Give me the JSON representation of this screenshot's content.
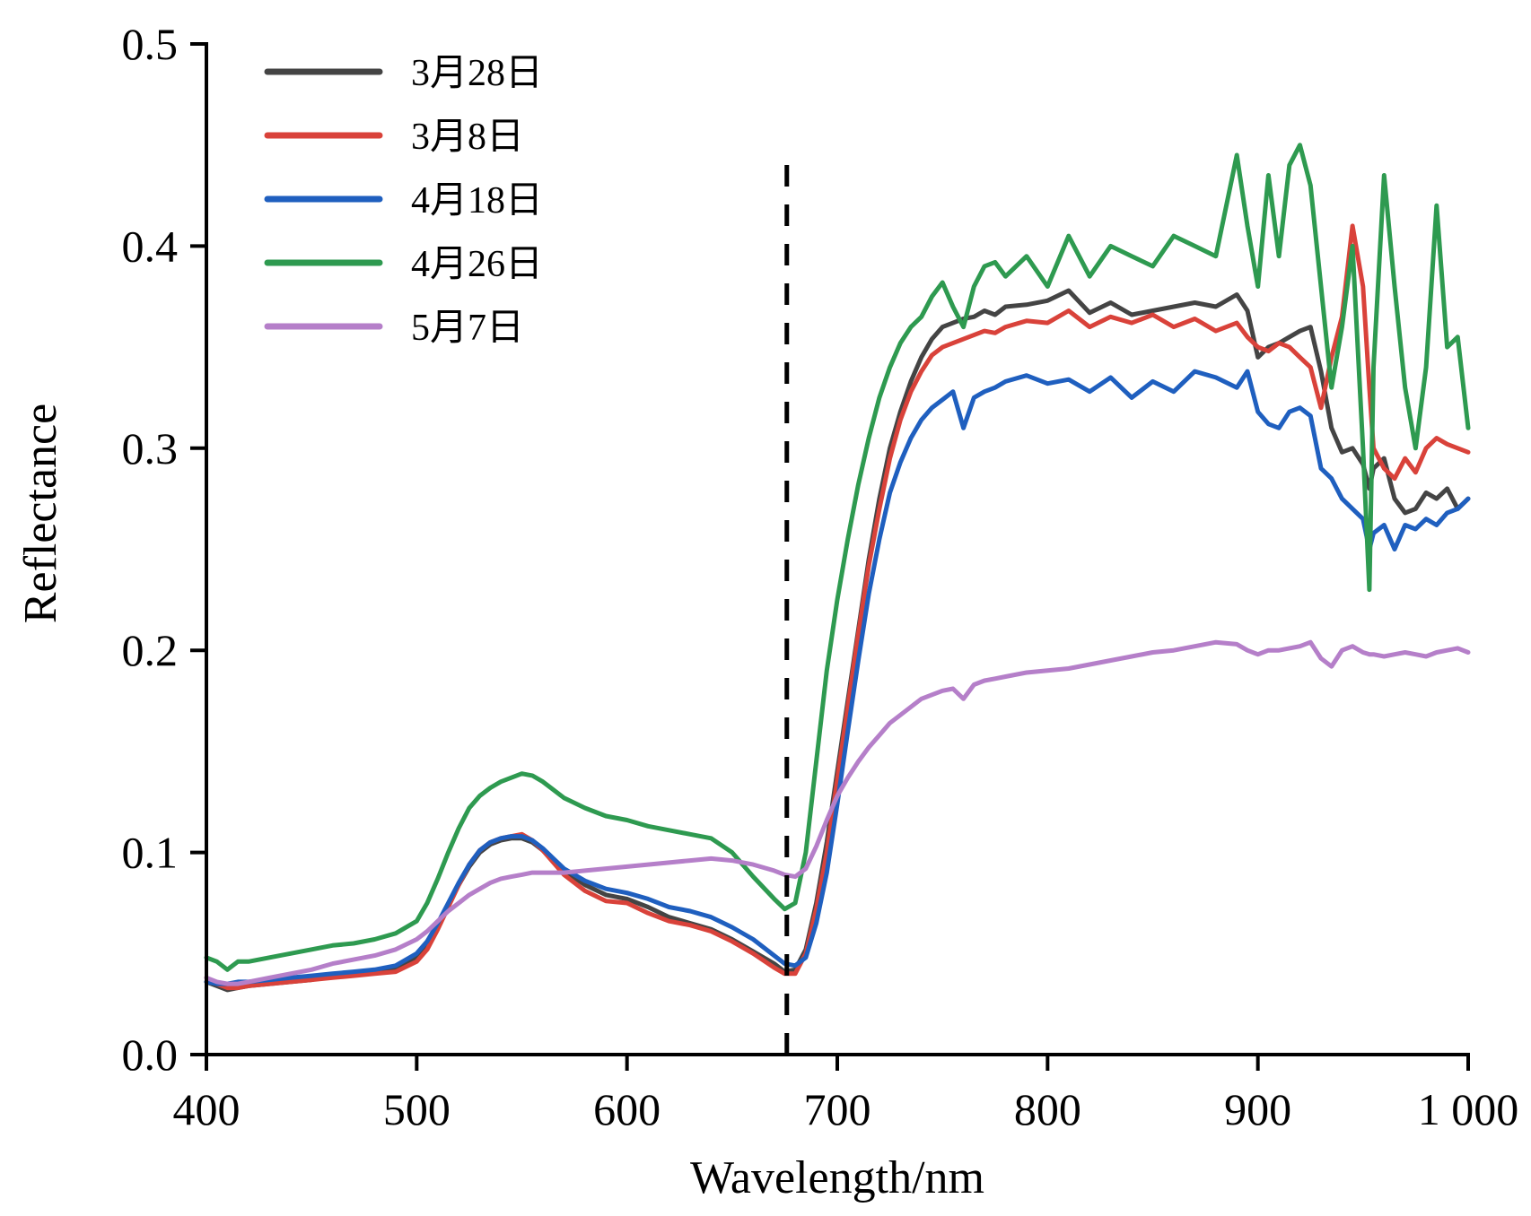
{
  "chart_data": {
    "type": "line",
    "title": "",
    "xlabel": "Wavelength/nm",
    "ylabel": "Reflectance",
    "xlim": [
      400,
      1000
    ],
    "ylim": [
      0.0,
      0.5
    ],
    "xticks": [
      400,
      500,
      600,
      700,
      800,
      900,
      1000
    ],
    "xtick_labels": [
      "400",
      "500",
      "600",
      "700",
      "800",
      "900",
      "1 000"
    ],
    "yticks": [
      0.0,
      0.1,
      0.2,
      0.3,
      0.4,
      0.5
    ],
    "ytick_labels": [
      "0.0",
      "0.1",
      "0.2",
      "0.3",
      "0.4",
      "0.5"
    ],
    "grid": false,
    "legend_position": "top-left",
    "reference_line": {
      "x": 676,
      "style": "dashed",
      "color": "#000000"
    },
    "x": [
      400,
      405,
      410,
      415,
      420,
      430,
      440,
      450,
      460,
      470,
      480,
      490,
      500,
      505,
      510,
      515,
      520,
      525,
      530,
      535,
      540,
      545,
      550,
      555,
      560,
      565,
      570,
      580,
      590,
      600,
      610,
      620,
      630,
      640,
      650,
      660,
      670,
      675,
      680,
      685,
      690,
      695,
      700,
      705,
      710,
      715,
      720,
      725,
      730,
      735,
      740,
      745,
      750,
      755,
      760,
      765,
      770,
      775,
      780,
      790,
      800,
      810,
      820,
      830,
      840,
      850,
      860,
      870,
      880,
      890,
      895,
      900,
      905,
      910,
      915,
      920,
      925,
      930,
      935,
      940,
      945,
      950,
      953,
      955,
      960,
      965,
      970,
      975,
      980,
      985,
      990,
      995,
      1000
    ],
    "series": [
      {
        "name": "3月28日",
        "color": "#444444",
        "values": [
          0.036,
          0.034,
          0.032,
          0.033,
          0.034,
          0.035,
          0.036,
          0.037,
          0.039,
          0.04,
          0.041,
          0.042,
          0.048,
          0.055,
          0.064,
          0.074,
          0.084,
          0.093,
          0.1,
          0.104,
          0.106,
          0.107,
          0.107,
          0.105,
          0.101,
          0.096,
          0.091,
          0.084,
          0.079,
          0.077,
          0.073,
          0.068,
          0.065,
          0.062,
          0.057,
          0.051,
          0.045,
          0.041,
          0.042,
          0.052,
          0.075,
          0.105,
          0.14,
          0.175,
          0.21,
          0.245,
          0.275,
          0.3,
          0.318,
          0.333,
          0.345,
          0.354,
          0.36,
          0.362,
          0.364,
          0.365,
          0.368,
          0.366,
          0.37,
          0.371,
          0.373,
          0.378,
          0.367,
          0.372,
          0.366,
          0.368,
          0.37,
          0.372,
          0.37,
          0.376,
          0.368,
          0.345,
          0.35,
          0.352,
          0.355,
          0.358,
          0.36,
          0.338,
          0.31,
          0.298,
          0.3,
          0.292,
          0.28,
          0.29,
          0.295,
          0.275,
          0.268,
          0.27,
          0.278,
          0.275,
          0.28,
          0.27,
          0.275
        ]
      },
      {
        "name": "3月8日",
        "color": "#d9423a",
        "values": [
          0.038,
          0.035,
          0.033,
          0.033,
          0.034,
          0.035,
          0.036,
          0.037,
          0.038,
          0.039,
          0.04,
          0.041,
          0.046,
          0.052,
          0.062,
          0.073,
          0.084,
          0.094,
          0.101,
          0.105,
          0.107,
          0.108,
          0.109,
          0.106,
          0.101,
          0.095,
          0.089,
          0.081,
          0.076,
          0.075,
          0.07,
          0.066,
          0.064,
          0.061,
          0.056,
          0.05,
          0.043,
          0.04,
          0.04,
          0.05,
          0.072,
          0.1,
          0.136,
          0.172,
          0.208,
          0.242,
          0.27,
          0.295,
          0.314,
          0.328,
          0.338,
          0.346,
          0.35,
          0.352,
          0.354,
          0.356,
          0.358,
          0.357,
          0.36,
          0.363,
          0.362,
          0.368,
          0.36,
          0.365,
          0.362,
          0.366,
          0.36,
          0.364,
          0.358,
          0.362,
          0.355,
          0.35,
          0.348,
          0.352,
          0.35,
          0.345,
          0.34,
          0.32,
          0.345,
          0.365,
          0.41,
          0.38,
          0.33,
          0.3,
          0.29,
          0.285,
          0.295,
          0.288,
          0.3,
          0.305,
          0.302,
          0.3,
          0.298
        ]
      },
      {
        "name": "4月18日",
        "color": "#1f5fbf",
        "values": [
          0.036,
          0.035,
          0.035,
          0.036,
          0.036,
          0.037,
          0.038,
          0.039,
          0.04,
          0.041,
          0.042,
          0.044,
          0.05,
          0.056,
          0.065,
          0.075,
          0.085,
          0.094,
          0.101,
          0.105,
          0.107,
          0.108,
          0.108,
          0.106,
          0.102,
          0.097,
          0.092,
          0.086,
          0.082,
          0.08,
          0.077,
          0.073,
          0.071,
          0.068,
          0.063,
          0.057,
          0.049,
          0.045,
          0.044,
          0.048,
          0.065,
          0.09,
          0.124,
          0.16,
          0.195,
          0.228,
          0.255,
          0.278,
          0.293,
          0.305,
          0.314,
          0.32,
          0.324,
          0.328,
          0.31,
          0.325,
          0.328,
          0.33,
          0.333,
          0.336,
          0.332,
          0.334,
          0.328,
          0.335,
          0.325,
          0.333,
          0.328,
          0.338,
          0.335,
          0.33,
          0.338,
          0.318,
          0.312,
          0.31,
          0.318,
          0.32,
          0.316,
          0.29,
          0.285,
          0.275,
          0.27,
          0.265,
          0.25,
          0.258,
          0.262,
          0.25,
          0.262,
          0.26,
          0.265,
          0.262,
          0.268,
          0.27,
          0.275
        ]
      },
      {
        "name": "4月26日",
        "color": "#2e9a50",
        "values": [
          0.048,
          0.046,
          0.042,
          0.046,
          0.046,
          0.048,
          0.05,
          0.052,
          0.054,
          0.055,
          0.057,
          0.06,
          0.066,
          0.075,
          0.087,
          0.1,
          0.112,
          0.122,
          0.128,
          0.132,
          0.135,
          0.137,
          0.139,
          0.138,
          0.135,
          0.131,
          0.127,
          0.122,
          0.118,
          0.116,
          0.113,
          0.111,
          0.109,
          0.107,
          0.1,
          0.088,
          0.077,
          0.072,
          0.075,
          0.1,
          0.145,
          0.19,
          0.225,
          0.255,
          0.282,
          0.305,
          0.325,
          0.34,
          0.352,
          0.36,
          0.365,
          0.375,
          0.382,
          0.37,
          0.36,
          0.38,
          0.39,
          0.392,
          0.385,
          0.395,
          0.38,
          0.405,
          0.385,
          0.4,
          0.395,
          0.39,
          0.405,
          0.4,
          0.395,
          0.445,
          0.41,
          0.38,
          0.435,
          0.395,
          0.44,
          0.45,
          0.43,
          0.38,
          0.33,
          0.36,
          0.4,
          0.3,
          0.23,
          0.34,
          0.435,
          0.38,
          0.33,
          0.3,
          0.34,
          0.42,
          0.35,
          0.355,
          0.31
        ]
      },
      {
        "name": "5月7日",
        "color": "#b57fc9",
        "values": [
          0.038,
          0.036,
          0.035,
          0.035,
          0.036,
          0.038,
          0.04,
          0.042,
          0.045,
          0.047,
          0.049,
          0.052,
          0.057,
          0.061,
          0.066,
          0.071,
          0.075,
          0.079,
          0.082,
          0.085,
          0.087,
          0.088,
          0.089,
          0.09,
          0.09,
          0.09,
          0.09,
          0.091,
          0.092,
          0.093,
          0.094,
          0.095,
          0.096,
          0.097,
          0.096,
          0.094,
          0.091,
          0.089,
          0.088,
          0.092,
          0.103,
          0.116,
          0.128,
          0.137,
          0.145,
          0.152,
          0.158,
          0.164,
          0.168,
          0.172,
          0.176,
          0.178,
          0.18,
          0.181,
          0.176,
          0.183,
          0.185,
          0.186,
          0.187,
          0.189,
          0.19,
          0.191,
          0.193,
          0.195,
          0.197,
          0.199,
          0.2,
          0.202,
          0.204,
          0.203,
          0.2,
          0.198,
          0.2,
          0.2,
          0.201,
          0.202,
          0.204,
          0.196,
          0.192,
          0.2,
          0.202,
          0.199,
          0.198,
          0.198,
          0.197,
          0.198,
          0.199,
          0.198,
          0.197,
          0.199,
          0.2,
          0.201,
          0.199
        ]
      }
    ]
  }
}
